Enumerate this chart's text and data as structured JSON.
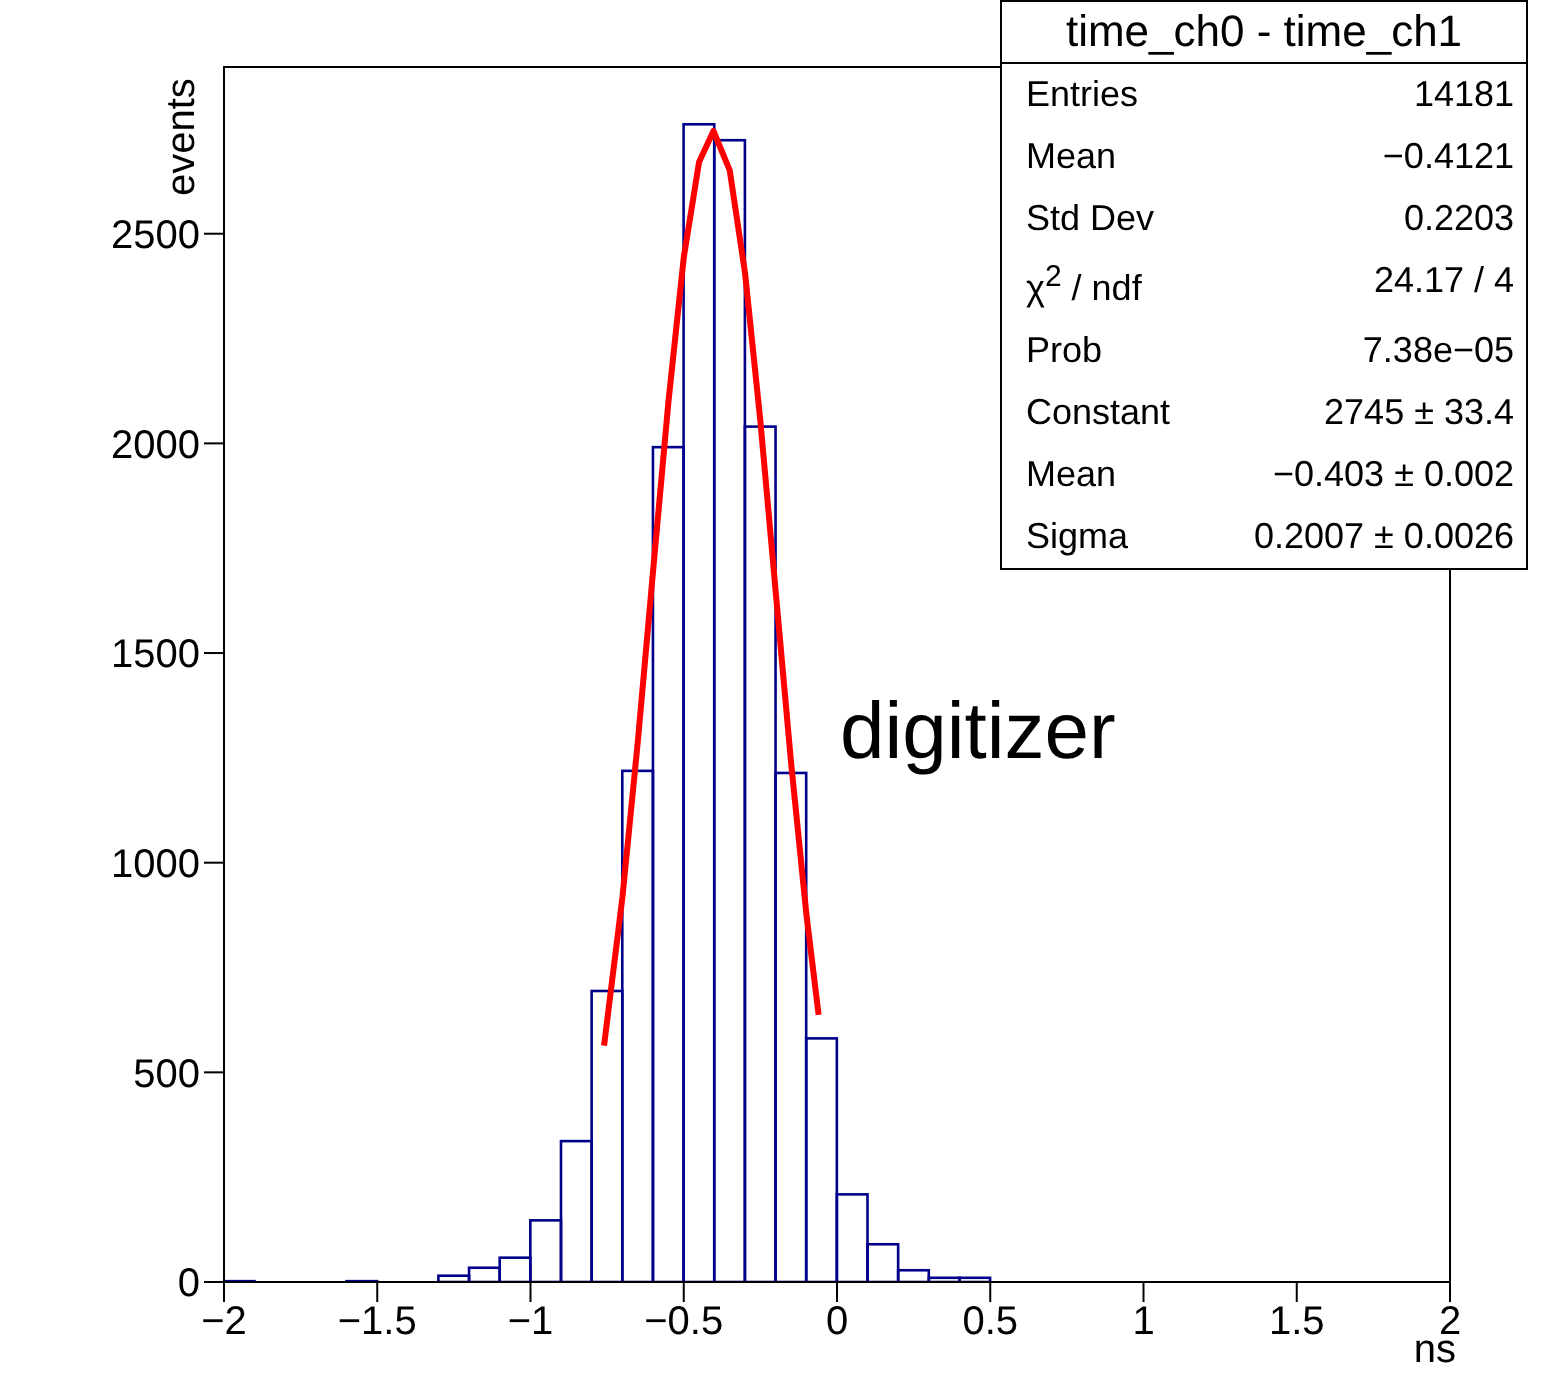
{
  "chart_data": {
    "type": "histogram",
    "xlabel": "ns",
    "ylabel": "events",
    "bins": [
      -2,
      -1.9,
      -1.8,
      -1.7,
      -1.6,
      -1.5,
      -1.4,
      -1.3,
      -1.2,
      -1.1,
      -1,
      -0.9,
      -0.8,
      -0.7,
      -0.6,
      -0.5,
      -0.4,
      -0.3,
      -0.2,
      -0.1,
      0,
      0.1,
      0.2,
      0.3,
      0.4,
      0.5,
      0.6,
      0.7,
      0.8,
      0.9,
      1,
      1.1,
      1.2,
      1.3,
      1.4,
      1.5,
      1.6,
      1.7,
      1.8,
      1.9,
      2
    ],
    "values": [
      2,
      0,
      0,
      0,
      2,
      0,
      0,
      15,
      34,
      58,
      147,
      336,
      694,
      1219,
      1991,
      2761,
      2723,
      2040,
      1214,
      581,
      209,
      90,
      28,
      10,
      10,
      0,
      0,
      0,
      0,
      0,
      0,
      0,
      0,
      0,
      0,
      0,
      0,
      0,
      0,
      0
    ],
    "color": "#00008b",
    "series": [
      {
        "type": "line",
        "color": "#ff0000",
        "x": [
          -0.76,
          -0.7,
          -0.65,
          -0.6,
          -0.55,
          -0.5,
          -0.45,
          -0.403,
          -0.35,
          -0.3,
          -0.25,
          -0.2,
          -0.15,
          -0.1,
          -0.06
        ],
        "values": [
          564,
          918,
          1288,
          1696,
          2099,
          2443,
          2671,
          2745,
          2651,
          2406,
          2053,
          1646,
          1240,
          878,
          637
        ]
      }
    ],
    "xlim": [
      -2,
      2
    ],
    "xticks": [
      -2,
      -1.5,
      -1,
      -0.5,
      0,
      0.5,
      1,
      1.5,
      2
    ],
    "ylim": [
      0,
      2900
    ],
    "yticks": [
      0,
      500,
      1000,
      1500,
      2000,
      2500
    ],
    "grid": false,
    "legend": false,
    "marker": "none",
    "annotations": [
      "time_ch0 - time_ch1",
      "Entries",
      "14181",
      "Mean",
      "−0.4121",
      "Std Dev",
      "0.2203",
      "χ$^{2}$ / ndf",
      "24.17 / 4",
      "Prob",
      "7.38e−05",
      "Constant",
      "2745 ± 33.4",
      "Mean",
      "−0.403 ± 0.002",
      "Sigma",
      "0.2007 ± 0.0026",
      "digitizer"
    ]
  }
}
